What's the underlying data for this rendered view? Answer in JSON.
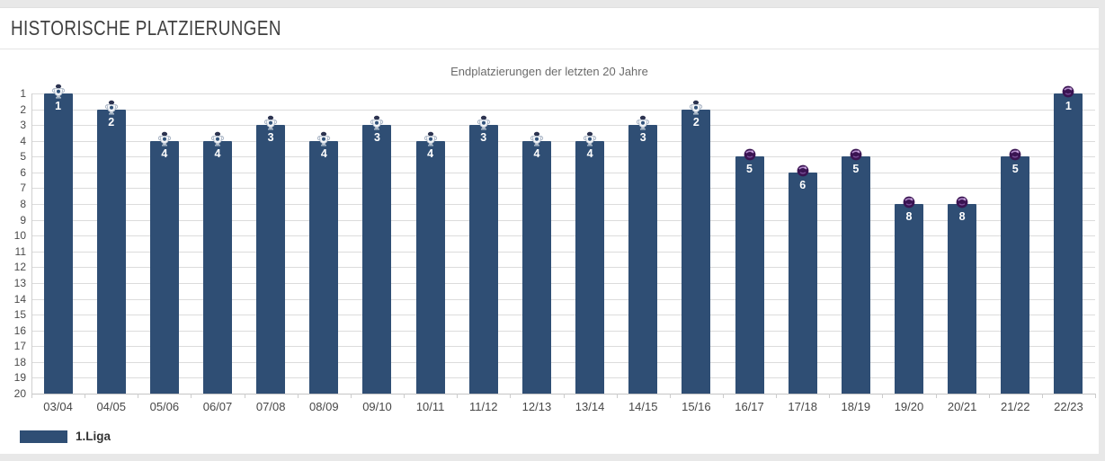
{
  "page": {
    "header_title": "HISTORISCHE PLATZIERUNGEN"
  },
  "chart_data": {
    "type": "bar",
    "title": "Endplatzierungen der letzten 20 Jahre",
    "categories": [
      "03/04",
      "04/05",
      "05/06",
      "06/07",
      "07/08",
      "08/09",
      "09/10",
      "10/11",
      "11/12",
      "12/13",
      "13/14",
      "14/15",
      "15/16",
      "16/17",
      "17/18",
      "18/19",
      "19/20",
      "20/21",
      "21/22",
      "22/23"
    ],
    "values": [
      1,
      2,
      4,
      4,
      3,
      4,
      3,
      4,
      3,
      4,
      4,
      3,
      2,
      5,
      6,
      5,
      8,
      8,
      5,
      1
    ],
    "bar_value_labels": [
      "1",
      "2",
      "4",
      "4",
      "3",
      "4",
      "3",
      "4",
      "3",
      "4",
      "4",
      "3",
      "2",
      "5",
      "6",
      "5",
      "8",
      "8",
      "5",
      "1"
    ],
    "icon_by_season": [
      "pl-crest",
      "pl-crest",
      "pl-crest",
      "pl-crest",
      "pl-crest",
      "pl-crest",
      "pl-crest",
      "pl-crest",
      "pl-crest",
      "pl-crest",
      "pl-crest",
      "pl-crest",
      "pl-crest",
      "pl-lion",
      "pl-lion",
      "pl-lion",
      "pl-lion",
      "pl-lion",
      "pl-lion",
      "pl-lion"
    ],
    "xlabel": "",
    "ylabel": "",
    "y_axis": {
      "min": 1,
      "max": 20,
      "inverted": true,
      "ticks": [
        1,
        2,
        3,
        4,
        5,
        6,
        7,
        8,
        9,
        10,
        11,
        12,
        13,
        14,
        15,
        16,
        17,
        18,
        19,
        20
      ]
    },
    "grid": true,
    "bar_color": "#2f4e74",
    "legend_position": "bottom-left",
    "legend": {
      "label": "1.Liga",
      "color": "#2f4e74"
    }
  }
}
